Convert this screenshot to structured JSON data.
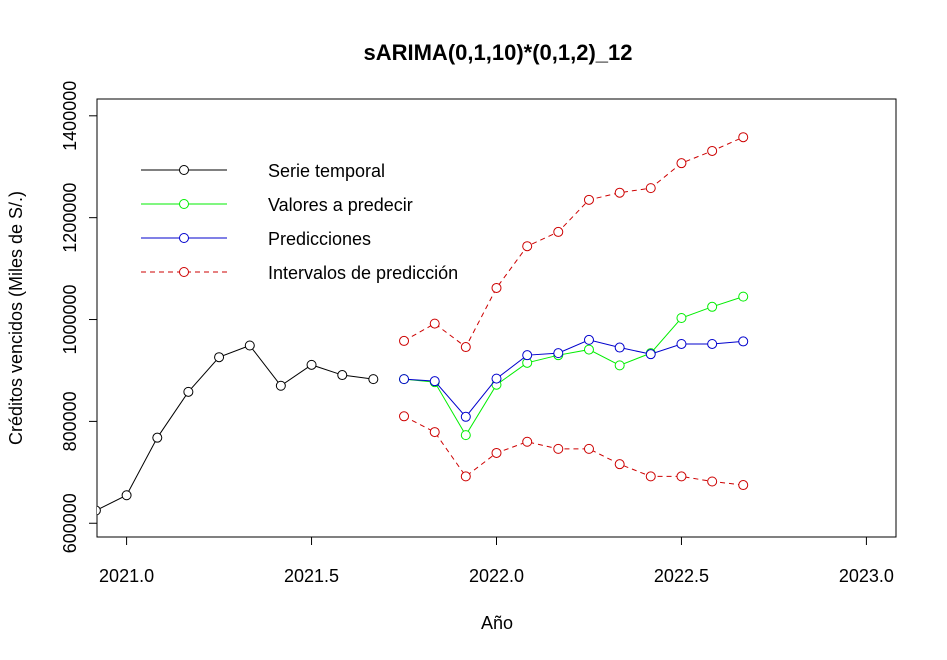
{
  "chart_data": {
    "type": "line",
    "title": "sARIMA(0,1,10)*(0,1,2)_12",
    "xlabel": "Año",
    "ylabel": "Créditos vencidos (Miles de S/.)",
    "xlim": [
      2020.92,
      2023.08
    ],
    "ylim": [
      573000,
      1433000
    ],
    "x_ticks": [
      2021.0,
      2021.5,
      2022.0,
      2022.5,
      2023.0
    ],
    "x_tick_labels": [
      "2021.0",
      "2021.5",
      "2022.0",
      "2022.5",
      "2023.0"
    ],
    "y_ticks": [
      600000,
      800000,
      1000000,
      1200000,
      1400000
    ],
    "y_tick_labels": [
      "600000",
      "800000",
      "1000000",
      "1200000",
      "1400000"
    ],
    "grid": false,
    "legend_position": "top-left",
    "series": [
      {
        "name": "Serie temporal",
        "color": "#000000",
        "dashed": false,
        "x": [
          2020.917,
          2021.0,
          2021.083,
          2021.167,
          2021.25,
          2021.333,
          2021.417,
          2021.5,
          2021.583,
          2021.667
        ],
        "y": [
          625000,
          655000,
          768000,
          858000,
          926000,
          949000,
          870000,
          911000,
          891000,
          883000
        ]
      },
      {
        "name": "Valores a predecir",
        "color": "#00ee00",
        "dashed": false,
        "x": [
          2021.75,
          2021.833,
          2021.917,
          2022.0,
          2022.083,
          2022.167,
          2022.25,
          2022.333,
          2022.417,
          2022.5,
          2022.583,
          2022.667
        ],
        "y": [
          883000,
          877000,
          773000,
          872000,
          915000,
          930000,
          941000,
          910000,
          934000,
          1003000,
          1025000,
          1045000
        ]
      },
      {
        "name": "Predicciones",
        "color": "#0000cd",
        "dashed": false,
        "x": [
          2021.75,
          2021.833,
          2021.917,
          2022.0,
          2022.083,
          2022.167,
          2022.25,
          2022.333,
          2022.417,
          2022.5,
          2022.583,
          2022.667
        ],
        "y": [
          883000,
          879000,
          809000,
          884000,
          930000,
          934000,
          960000,
          945000,
          932000,
          952000,
          952000,
          957000
        ]
      },
      {
        "name": "Intervalos de predicción",
        "color": "#cd0000",
        "dashed": true,
        "x": [
          2021.75,
          2021.833,
          2021.917,
          2022.0,
          2022.083,
          2022.167,
          2022.25,
          2022.333,
          2022.417,
          2022.5,
          2022.583,
          2022.667
        ],
        "y": [
          958000,
          992000,
          946000,
          1062000,
          1144000,
          1172000,
          1235000,
          1249000,
          1258000,
          1307000,
          1331000,
          1358000
        ]
      },
      {
        "name": "",
        "color": "#cd0000",
        "dashed": true,
        "x": [
          2021.75,
          2021.833,
          2021.917,
          2022.0,
          2022.083,
          2022.167,
          2022.25,
          2022.333,
          2022.417,
          2022.5,
          2022.583,
          2022.667
        ],
        "y": [
          810000,
          779000,
          692000,
          738000,
          760000,
          746000,
          746000,
          716000,
          692000,
          692000,
          682000,
          675000
        ]
      }
    ],
    "legend": [
      {
        "label": "Serie temporal",
        "color": "#000000",
        "dashed": false
      },
      {
        "label": "Valores a predecir",
        "color": "#00ee00",
        "dashed": false
      },
      {
        "label": "Predicciones",
        "color": "#0000cd",
        "dashed": false
      },
      {
        "label": "Intervalos de predicción",
        "color": "#cd0000",
        "dashed": true
      }
    ]
  }
}
